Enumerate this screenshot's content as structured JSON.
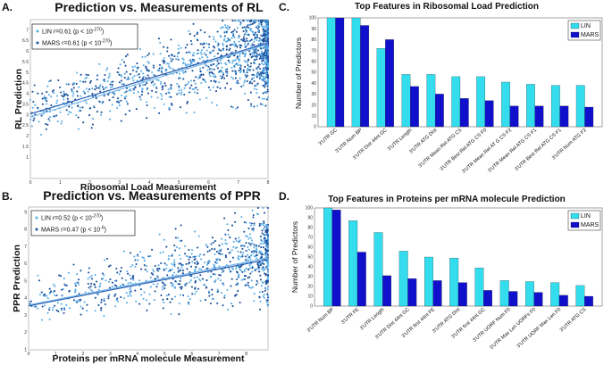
{
  "panels": {
    "a": {
      "letter": "A."
    },
    "b": {
      "letter": "B."
    },
    "c": {
      "letter": "C."
    },
    "d": {
      "letter": "D."
    }
  },
  "colors": {
    "lin": "#33ddee",
    "mars": "#1010cc",
    "scatter_light": "#5aaee6",
    "scatter_dark": "#1a4f9a",
    "line_light": "#78b8ea",
    "line_dark": "#2d5fb0"
  },
  "chart_data": [
    {
      "type": "scatter",
      "title": "Prediction vs. Measurements of RL",
      "xlabel": "Ribosomal Load Measurement",
      "ylabel": "RL Prediction",
      "legend": [
        {
          "name": "LIN",
          "text_main": "LIN r=0.61 (p < 10",
          "text_sup": "-270",
          "text_end": ")"
        },
        {
          "name": "MARS",
          "text_main": "MARS r=0.61 (p < 10",
          "text_sup": "-270",
          "text_end": ")"
        }
      ],
      "legend_position": "top-left",
      "xlim": [
        0,
        8
      ],
      "ylim": [
        0,
        7.5
      ],
      "xticks": [
        "0",
        "1",
        "2",
        "3",
        "4",
        "5",
        "6",
        "7",
        "8"
      ],
      "yticks": [
        "1",
        "1.5",
        "2",
        "2.5",
        "3",
        "3.5",
        "4",
        "4.5",
        "5",
        "5.5",
        "6",
        "6.5",
        "7"
      ],
      "trend_lines": [
        {
          "name": "LIN",
          "y_at_x0": 2.9,
          "y_at_xmax": 6.35
        },
        {
          "name": "MARS",
          "y_at_x0": 3.05,
          "y_at_xmax": 6.4
        }
      ]
    },
    {
      "type": "scatter",
      "title": "Prediction vs. Measurements of PPR",
      "xlabel": "Proteins per mRNA molecule Measurement",
      "ylabel": "PPR Prediction",
      "legend": [
        {
          "name": "LIN",
          "text_main": "LIN r=0.52 (p < 10",
          "text_sup": "-270",
          "text_end": ")"
        },
        {
          "name": "MARS",
          "text_main": "MARS r=0.47 (p < 10",
          "text_sup": "-6",
          "text_end": ")"
        }
      ],
      "legend_position": "top-left",
      "xlim": [
        0,
        8.8
      ],
      "ylim": [
        1,
        9.3
      ],
      "xticks": [
        "0",
        "1",
        "2",
        "3",
        "4",
        "5",
        "6",
        "7",
        "8"
      ],
      "yticks": [
        "1",
        "2",
        "3",
        "4",
        "5",
        "6",
        "7",
        "8",
        "9"
      ],
      "trend_lines": [
        {
          "name": "LIN",
          "y_at_x0": 3.6,
          "y_at_xmax": 6.35
        },
        {
          "name": "MARS",
          "y_at_x0": 3.55,
          "y_at_xmax": 6.25
        }
      ]
    },
    {
      "type": "bar",
      "title": "Top Features in Ribosomal Load Prediction",
      "ylabel": "Number of Predictors",
      "ylim": [
        0,
        100
      ],
      "yticks": [
        "0",
        "10",
        "20",
        "30",
        "40",
        "50",
        "60",
        "70",
        "80",
        "90",
        "100"
      ],
      "legend_position": "top-right",
      "categories": [
        "3'UTR GC",
        "3'UTR Num BP",
        "3'UTR Dist 44nt GC",
        "3'UTR Length",
        "3'UTR ATG Dist",
        "3'UTR Mean Rel ATG CS",
        "3'UTR Best Rel ATG CS F0",
        "3'UTR Mean Rel AT G CS F2",
        "3'UTR Mean Rel ATG CS F1",
        "3'UTR Best Rel ATG CS F1",
        "3'UTR Num ATG F2"
      ],
      "series": [
        {
          "name": "LIN",
          "values": [
            100,
            100,
            72,
            48,
            48,
            46,
            46,
            41,
            39,
            38,
            38
          ]
        },
        {
          "name": "MARS",
          "values": [
            100,
            93,
            80,
            37,
            30,
            26,
            24,
            19,
            19,
            19,
            18
          ]
        }
      ]
    },
    {
      "type": "bar",
      "title": "Top Features in Proteins per mRNA molecule Prediction",
      "ylabel": "Number of Predictors",
      "ylim": [
        0,
        100
      ],
      "yticks": [
        "0",
        "10",
        "20",
        "30",
        "40",
        "50",
        "60",
        "70",
        "80",
        "90",
        "100"
      ],
      "legend_position": "top-right",
      "categories": [
        "3'UTR Num BP",
        "3'UTR FE",
        "3'UTR Length",
        "3'UTR Dist 44nt GC",
        "3'UTR first 44nt FE",
        "3'UTR ATG Dist",
        "3'UTR first 44nt GC",
        "3'UTR UORF Num F0",
        "3'UTR Max Len UORFs F0",
        "3'UTR UORF Max Len F0",
        "3'UTR ATG CS"
      ],
      "series": [
        {
          "name": "LIN",
          "values": [
            100,
            87,
            75,
            56,
            50,
            49,
            39,
            26,
            25,
            24,
            21
          ]
        },
        {
          "name": "MARS",
          "values": [
            98,
            55,
            31,
            28,
            26,
            24,
            16,
            15,
            14,
            11,
            10
          ]
        }
      ]
    }
  ]
}
